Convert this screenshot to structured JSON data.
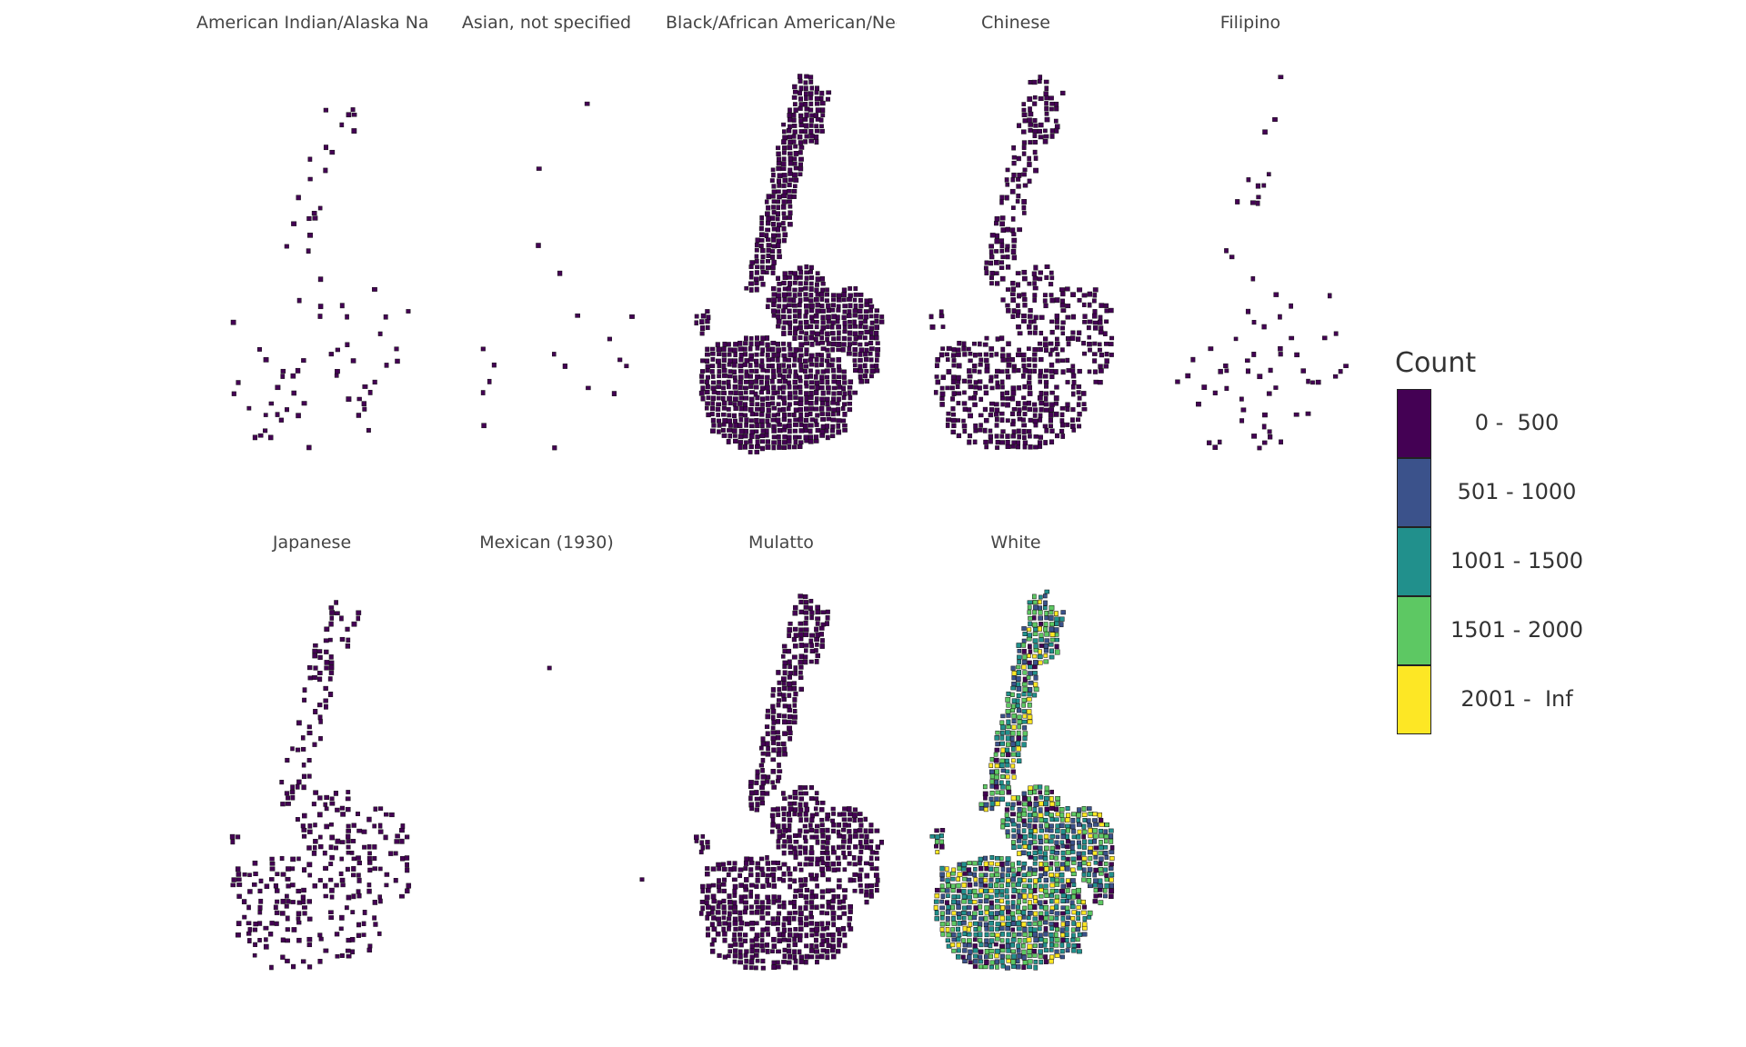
{
  "legend": {
    "title": "Count",
    "bins": [
      {
        "label": "0 -  500",
        "color": "#440154"
      },
      {
        "label": "501 - 1000",
        "color": "#3B528B"
      },
      {
        "label": "1001 - 1500",
        "color": "#21908C"
      },
      {
        "label": "1501 - 2000",
        "color": "#5DC863"
      },
      {
        "label": "2001 -  Inf",
        "color": "#FDE725"
      }
    ]
  },
  "panels": [
    {
      "title": "American Indian/Alaska Native (AIAN)",
      "density": 0.07,
      "bins": [
        0
      ]
    },
    {
      "title": "Asian, not specified",
      "density": 0.025,
      "bins": [
        0
      ]
    },
    {
      "title": "Black/African American/Negro",
      "density": 1.0,
      "bins": [
        0
      ]
    },
    {
      "title": "Chinese",
      "density": 0.6,
      "bins": [
        0
      ]
    },
    {
      "title": "Filipino",
      "density": 0.07,
      "bins": [
        0
      ]
    },
    {
      "title": "Japanese",
      "density": 0.32,
      "bins": [
        0
      ]
    },
    {
      "title": "Mexican (1930)",
      "density": 0.004,
      "bins": [
        0
      ]
    },
    {
      "title": "Mulatto",
      "density": 0.8,
      "bins": [
        0
      ]
    },
    {
      "title": "White",
      "density": 1.0,
      "bins": [
        0,
        1,
        2,
        3,
        4
      ]
    }
  ]
}
